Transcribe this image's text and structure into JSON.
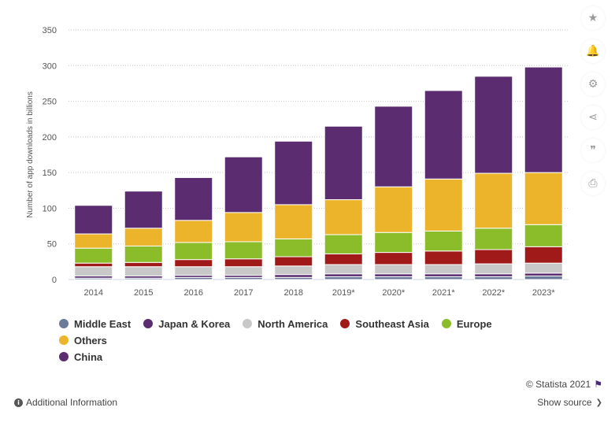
{
  "chart_data": {
    "type": "bar",
    "stacked": true,
    "title": "",
    "xlabel": "",
    "ylabel": "Number of app downloads in billions",
    "ylim": [
      0,
      350
    ],
    "yticks": [
      0,
      50,
      100,
      150,
      200,
      250,
      300,
      350
    ],
    "grid": true,
    "legend_position": "bottom",
    "categories": [
      "2014",
      "2015",
      "2016",
      "2017",
      "2018",
      "2019*",
      "2020*",
      "2021*",
      "2022*",
      "2023*"
    ],
    "series": [
      {
        "name": "Middle East",
        "color": "#6b7a99",
        "values": [
          2,
          2,
          3,
          3,
          3,
          4,
          4,
          4,
          4,
          5
        ]
      },
      {
        "name": "Japan & Korea",
        "color": "#5b2c6f",
        "values": [
          3,
          3,
          3,
          3,
          4,
          4,
          4,
          4,
          4,
          4
        ]
      },
      {
        "name": "North America",
        "color": "#c8c8c8",
        "values": [
          13,
          13,
          12,
          12,
          12,
          13,
          13,
          13,
          14,
          14
        ]
      },
      {
        "name": "Southeast Asia",
        "color": "#a11a1a",
        "values": [
          5,
          6,
          10,
          11,
          13,
          15,
          17,
          19,
          20,
          23
        ]
      },
      {
        "name": "Europe",
        "color": "#8bbd2b",
        "values": [
          21,
          23,
          24,
          24,
          25,
          27,
          28,
          28,
          30,
          31
        ]
      },
      {
        "name": "Others",
        "color": "#ebb42b",
        "values": [
          20,
          25,
          31,
          41,
          48,
          49,
          64,
          73,
          77,
          73
        ]
      },
      {
        "name": "China",
        "color": "#5b2c6f",
        "values": [
          40,
          52,
          60,
          78,
          89,
          103,
          113,
          124,
          136,
          148
        ]
      }
    ]
  },
  "sidebar": {
    "icons": [
      "star-icon",
      "bell-icon",
      "gear-icon",
      "share-icon",
      "quote-icon",
      "print-icon"
    ],
    "glyphs": [
      "★",
      "🔔",
      "⚙",
      "⋖",
      "❞",
      "⎙"
    ]
  },
  "credit": {
    "text": "© Statista 2021",
    "flag": "⚑"
  },
  "footer": {
    "additional_info": "Additional Information",
    "show_source": "Show source",
    "info_glyph": "i",
    "chevron_glyph": "❯"
  }
}
